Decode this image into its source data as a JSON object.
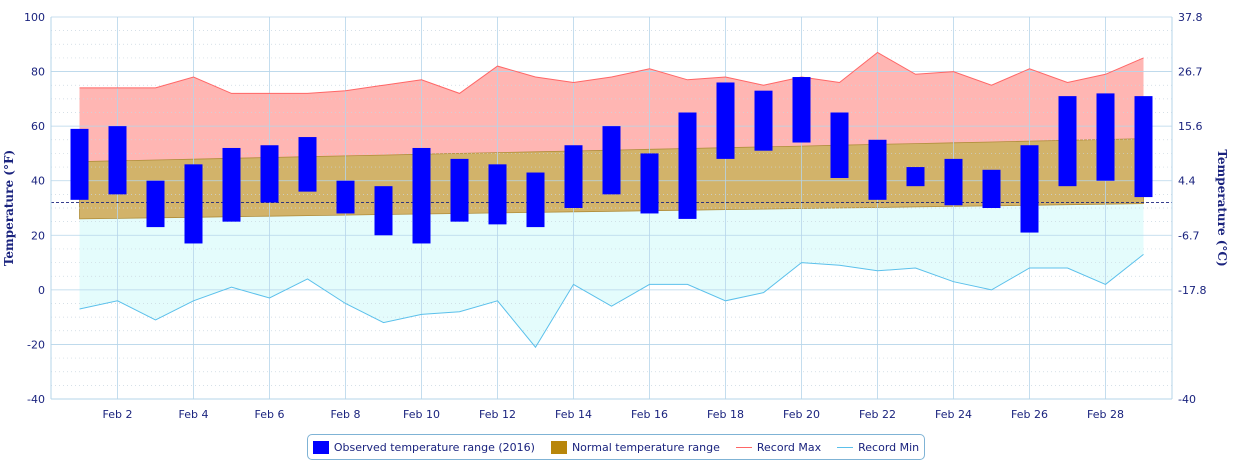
{
  "chart_data": {
    "type": "bar",
    "x": [
      1,
      2,
      3,
      4,
      5,
      6,
      7,
      8,
      9,
      10,
      11,
      12,
      13,
      14,
      15,
      16,
      17,
      18,
      19,
      20,
      21,
      22,
      23,
      24,
      25,
      26,
      27,
      28,
      29
    ],
    "x_tick_labels": [
      "Feb 2",
      "Feb 4",
      "Feb 6",
      "Feb 8",
      "Feb 10",
      "Feb 12",
      "Feb 14",
      "Feb 16",
      "Feb 18",
      "Feb 20",
      "Feb 22",
      "Feb 24",
      "Feb 26",
      "Feb 28"
    ],
    "x_tick_values": [
      2,
      4,
      6,
      8,
      10,
      12,
      14,
      16,
      18,
      20,
      22,
      24,
      26,
      28
    ],
    "xlim": [
      0.25,
      29.75
    ],
    "ylabel": "Temperature (°F)",
    "y2label": "Temperature (°C)",
    "ylim": [
      -40,
      100
    ],
    "y_ticks": [
      -40,
      -20,
      0,
      20,
      40,
      60,
      80,
      100
    ],
    "y2_ticks": [
      {
        "f": -40,
        "label": "-40"
      },
      {
        "f": 0,
        "label": "-17.8"
      },
      {
        "f": 20,
        "label": "-6.7"
      },
      {
        "f": 40,
        "label": "4.4"
      },
      {
        "f": 60,
        "label": "15.6"
      },
      {
        "f": 80,
        "label": "26.7"
      },
      {
        "f": 100,
        "label": "37.8"
      }
    ],
    "freezing_line": 32,
    "series": [
      {
        "name": "Observed temperature range (2016)",
        "color": "#0000ff",
        "low": [
          33,
          35,
          23,
          17,
          25,
          32,
          36,
          28,
          20,
          17,
          25,
          24,
          23,
          30,
          35,
          28,
          26,
          48,
          51,
          54,
          41,
          33,
          38,
          31,
          30,
          21,
          38,
          40,
          34
        ],
        "high": [
          59,
          60,
          40,
          46,
          52,
          53,
          56,
          40,
          38,
          52,
          48,
          46,
          43,
          53,
          60,
          50,
          65,
          76,
          73,
          78,
          65,
          55,
          45,
          48,
          44,
          53,
          71,
          72,
          71
        ]
      },
      {
        "name": "Normal temperature range",
        "color": "#b8860b",
        "low": [
          26,
          26.2,
          26.4,
          26.6,
          26.8,
          27,
          27.2,
          27.4,
          27.6,
          27.8,
          28,
          28.2,
          28.4,
          28.6,
          28.8,
          29,
          29.2,
          29.4,
          29.6,
          29.8,
          30,
          30.2,
          30.4,
          30.6,
          30.8,
          31,
          31.2,
          31.4,
          31.6
        ],
        "high": [
          47,
          47.3,
          47.6,
          47.9,
          48.2,
          48.5,
          48.8,
          49.1,
          49.4,
          49.7,
          50,
          50.3,
          50.6,
          50.9,
          51.2,
          51.5,
          51.8,
          52.1,
          52.4,
          52.7,
          53,
          53.3,
          53.6,
          53.9,
          54.2,
          54.5,
          54.8,
          55.1,
          55.4
        ]
      },
      {
        "name": "Record Max",
        "color": "#ff6666",
        "values": [
          74,
          74,
          74,
          78,
          72,
          72,
          72,
          73,
          75,
          77,
          72,
          82,
          78,
          76,
          78,
          81,
          77,
          78,
          75,
          78,
          76,
          87,
          79,
          80,
          75,
          81,
          76,
          79,
          85
        ]
      },
      {
        "name": "Record Min",
        "color": "#5bc0eb",
        "values": [
          -7,
          -4,
          -11,
          -4,
          1,
          -3,
          4,
          -5,
          -12,
          -9,
          -8,
          -4,
          -21,
          2,
          -6,
          2,
          2,
          -4,
          -1,
          10,
          9,
          7,
          8,
          3,
          0,
          8,
          8,
          2,
          13
        ]
      }
    ],
    "grid": true,
    "legend_position": "bottom-center"
  },
  "legend": {
    "observed": "Observed temperature range (2016)",
    "normal": "Normal temperature range",
    "max": "Record Max",
    "min": "Record Min"
  },
  "colors": {
    "observed": "#0000ff",
    "normal_fill": "#d2b36a",
    "normal_swatch": "#b8860b",
    "max_fill": "#ffb6b3",
    "max_line": "#ff6666",
    "min_fill": "#e4fcfc",
    "min_line": "#5bc0eb",
    "grid": "#b6d5ea",
    "axis_text": "#1a237e"
  }
}
